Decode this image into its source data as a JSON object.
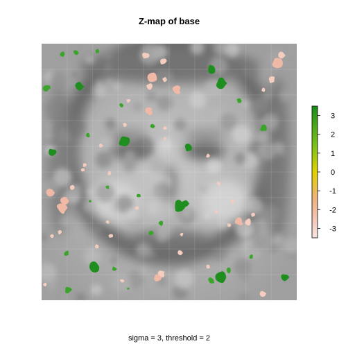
{
  "chart_data": {
    "type": "heatmap",
    "title": "Z-map of base",
    "caption": "sigma = 3, threshold = 2",
    "colorbar": {
      "ticks": [
        3,
        2,
        1,
        0,
        -1,
        -2,
        -3
      ],
      "tick_labels": [
        "3",
        "2",
        "1",
        "0",
        "-1",
        "-2",
        "-3"
      ],
      "range": [
        -3.5,
        3.5
      ],
      "colors": {
        "high": "#1a8c1a",
        "mid_high": "#7cc21a",
        "zero": "#e0d200",
        "mid_low": "#f1b27a",
        "low": "#f7e6e1"
      }
    },
    "background": "grayscale base image (face-like pattern)",
    "threshold": 2,
    "sigma": 3,
    "significant_positive_blobs": 32,
    "significant_negative_blobs": 45,
    "grid": false,
    "legend": "right"
  }
}
